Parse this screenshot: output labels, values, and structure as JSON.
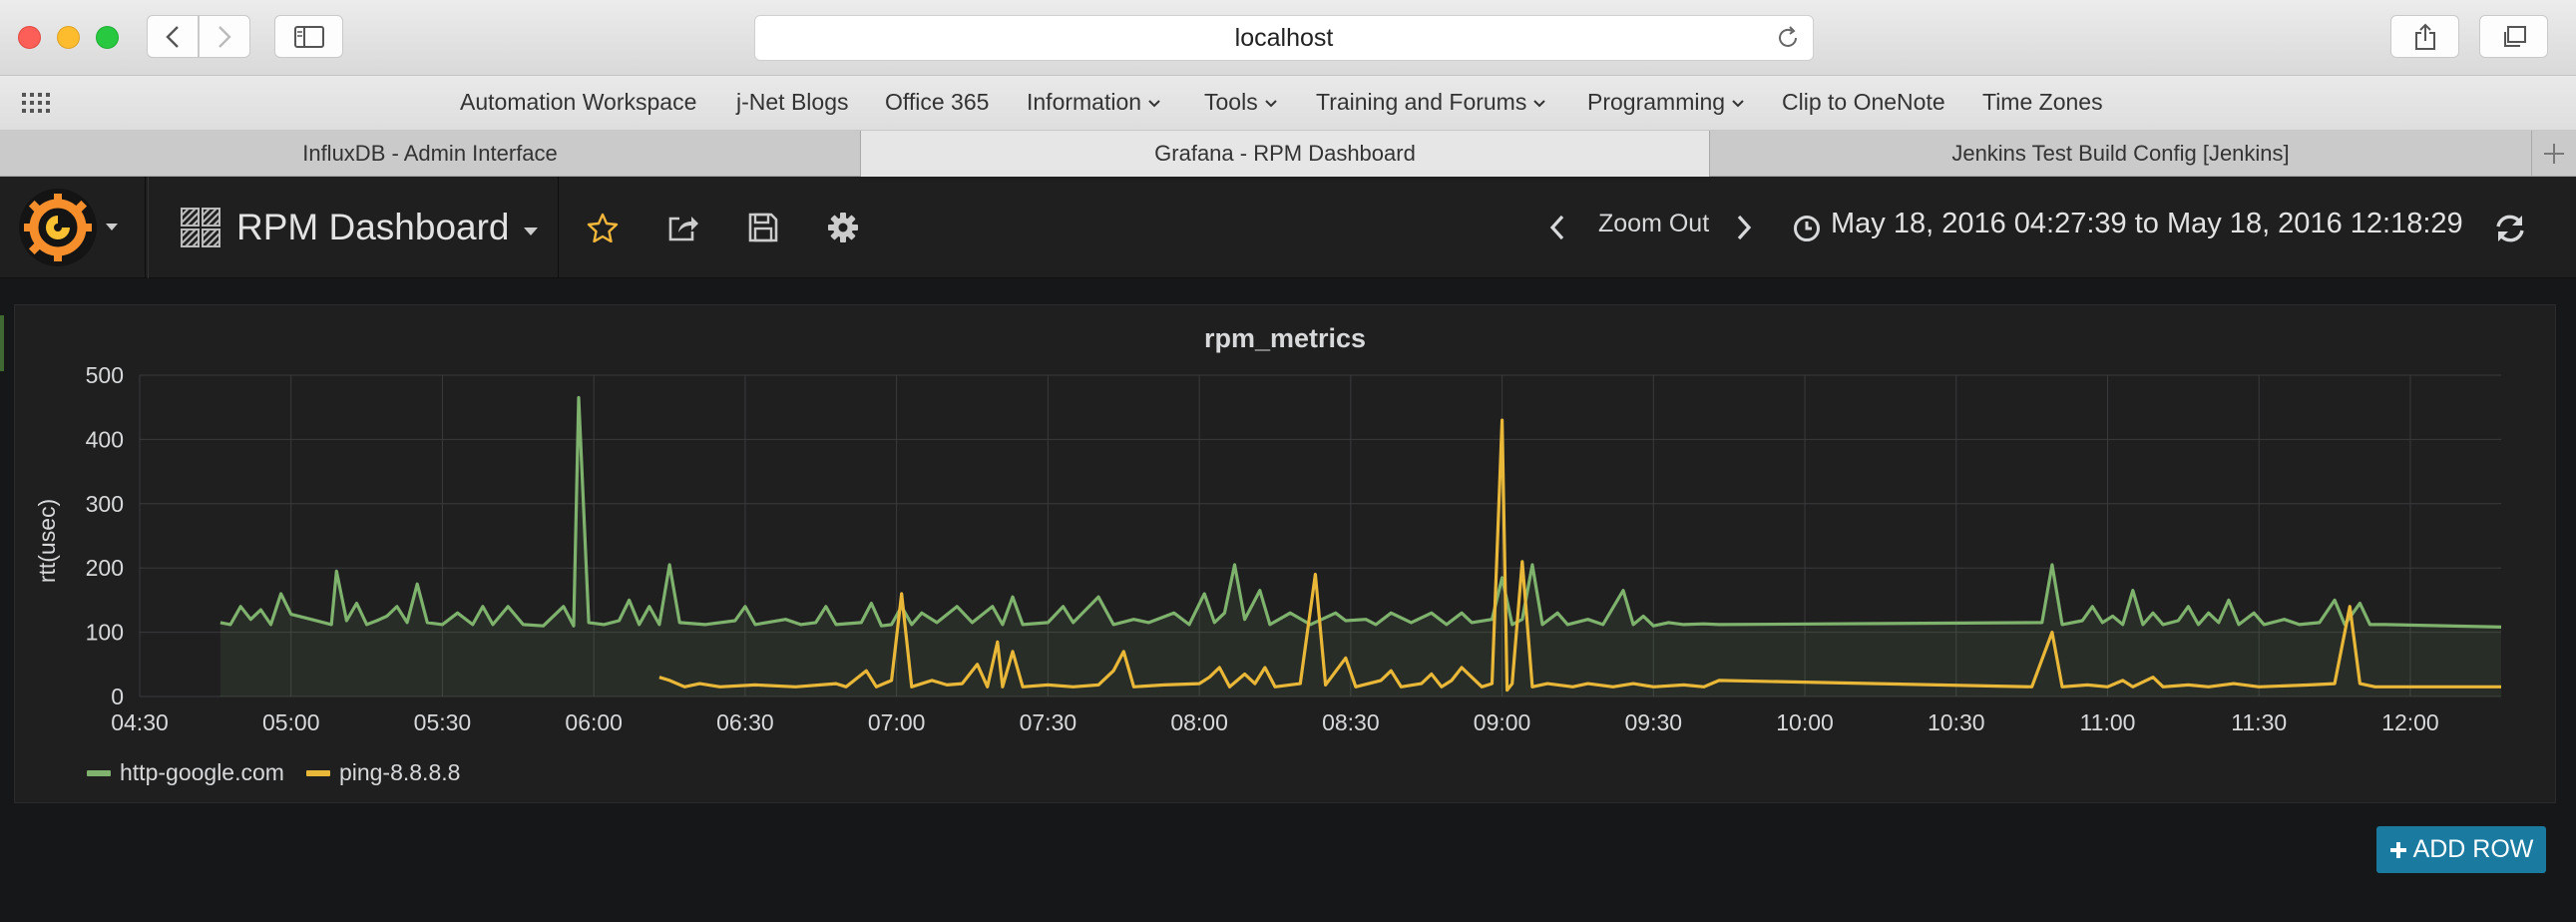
{
  "browser": {
    "url": "localhost",
    "bookmarks": [
      {
        "label": "Automation Workspace",
        "menu": false
      },
      {
        "label": "j-Net Blogs",
        "menu": false
      },
      {
        "label": "Office 365",
        "menu": false
      },
      {
        "label": "Information",
        "menu": true
      },
      {
        "label": "Tools",
        "menu": true
      },
      {
        "label": "Training and Forums",
        "menu": true
      },
      {
        "label": "Programming",
        "menu": true
      },
      {
        "label": "Clip to OneNote",
        "menu": false
      },
      {
        "label": "Time Zones",
        "menu": false
      }
    ],
    "tabs": [
      {
        "label": "InfluxDB - Admin Interface",
        "active": false
      },
      {
        "label": "Grafana - RPM Dashboard",
        "active": true
      },
      {
        "label": "Jenkins Test Build Config [Jenkins]",
        "active": false
      }
    ]
  },
  "dashboard": {
    "title": "RPM Dashboard",
    "zoom_label": "Zoom Out",
    "time_range": "May 18, 2016 04:27:39 to May 18, 2016 12:18:29",
    "add_row_label": "ADD ROW"
  },
  "chart_data": {
    "type": "line",
    "title": "rpm_metrics",
    "ylabel": "rtt(usec)",
    "xlabel": "",
    "x_ticks": [
      "04:30",
      "05:00",
      "05:30",
      "06:00",
      "06:30",
      "07:00",
      "07:30",
      "08:00",
      "08:30",
      "09:00",
      "09:30",
      "10:00",
      "10:30",
      "11:00",
      "11:30",
      "12:00"
    ],
    "y_ticks": [
      0,
      100,
      200,
      300,
      400,
      500
    ],
    "ylim": [
      0,
      500
    ],
    "xlim": [
      "04:30",
      "12:18"
    ],
    "grid": true,
    "legend": "bottom-left",
    "series": [
      {
        "name": "http-google.com",
        "color": "#7eb26d",
        "fill": true,
        "points": [
          [
            "04:46",
            115
          ],
          [
            "04:48",
            112
          ],
          [
            "04:50",
            140
          ],
          [
            "04:52",
            120
          ],
          [
            "04:54",
            135
          ],
          [
            "04:56",
            112
          ],
          [
            "04:58",
            160
          ],
          [
            "05:00",
            128
          ],
          [
            "05:04",
            120
          ],
          [
            "05:08",
            112
          ],
          [
            "05:09",
            195
          ],
          [
            "05:11",
            118
          ],
          [
            "05:13",
            145
          ],
          [
            "05:15",
            112
          ],
          [
            "05:17",
            118
          ],
          [
            "05:19",
            125
          ],
          [
            "05:21",
            140
          ],
          [
            "05:23",
            115
          ],
          [
            "05:25",
            175
          ],
          [
            "05:27",
            115
          ],
          [
            "05:30",
            112
          ],
          [
            "05:33",
            130
          ],
          [
            "05:36",
            112
          ],
          [
            "05:38",
            140
          ],
          [
            "05:40",
            112
          ],
          [
            "05:43",
            140
          ],
          [
            "05:46",
            112
          ],
          [
            "05:50",
            110
          ],
          [
            "05:54",
            140
          ],
          [
            "05:56",
            110
          ],
          [
            "05:57",
            465
          ],
          [
            "05:59",
            115
          ],
          [
            "06:02",
            112
          ],
          [
            "06:05",
            118
          ],
          [
            "06:07",
            150
          ],
          [
            "06:09",
            112
          ],
          [
            "06:11",
            140
          ],
          [
            "06:13",
            112
          ],
          [
            "06:15",
            205
          ],
          [
            "06:17",
            115
          ],
          [
            "06:22",
            112
          ],
          [
            "06:28",
            118
          ],
          [
            "06:30",
            140
          ],
          [
            "06:32",
            112
          ],
          [
            "06:38",
            120
          ],
          [
            "06:41",
            112
          ],
          [
            "06:44",
            115
          ],
          [
            "06:46",
            140
          ],
          [
            "06:48",
            112
          ],
          [
            "06:53",
            115
          ],
          [
            "06:55",
            145
          ],
          [
            "06:57",
            110
          ],
          [
            "06:59",
            112
          ],
          [
            "07:01",
            140
          ],
          [
            "07:03",
            112
          ],
          [
            "07:05",
            130
          ],
          [
            "07:08",
            115
          ],
          [
            "07:12",
            140
          ],
          [
            "07:15",
            115
          ],
          [
            "07:19",
            140
          ],
          [
            "07:21",
            112
          ],
          [
            "07:23",
            155
          ],
          [
            "07:25",
            112
          ],
          [
            "07:30",
            115
          ],
          [
            "07:33",
            140
          ],
          [
            "07:35",
            115
          ],
          [
            "07:40",
            155
          ],
          [
            "07:43",
            112
          ],
          [
            "07:47",
            120
          ],
          [
            "07:50",
            115
          ],
          [
            "07:55",
            130
          ],
          [
            "07:58",
            112
          ],
          [
            "08:01",
            160
          ],
          [
            "08:03",
            115
          ],
          [
            "08:05",
            130
          ],
          [
            "08:07",
            205
          ],
          [
            "08:09",
            120
          ],
          [
            "08:12",
            165
          ],
          [
            "08:14",
            112
          ],
          [
            "08:18",
            130
          ],
          [
            "08:22",
            112
          ],
          [
            "08:27",
            130
          ],
          [
            "08:29",
            118
          ],
          [
            "08:33",
            120
          ],
          [
            "08:35",
            112
          ],
          [
            "08:38",
            130
          ],
          [
            "08:42",
            115
          ],
          [
            "08:46",
            130
          ],
          [
            "08:49",
            112
          ],
          [
            "08:52",
            130
          ],
          [
            "08:54",
            115
          ],
          [
            "08:58",
            120
          ],
          [
            "09:00",
            185
          ],
          [
            "09:02",
            112
          ],
          [
            "09:04",
            120
          ],
          [
            "09:06",
            205
          ],
          [
            "09:08",
            112
          ],
          [
            "09:11",
            130
          ],
          [
            "09:13",
            112
          ],
          [
            "09:17",
            120
          ],
          [
            "09:20",
            112
          ],
          [
            "09:24",
            165
          ],
          [
            "09:26",
            112
          ],
          [
            "09:28",
            125
          ],
          [
            "09:30",
            110
          ],
          [
            "09:33",
            115
          ],
          [
            "09:36",
            112
          ],
          [
            "09:40",
            113
          ],
          [
            "09:43",
            112
          ],
          [
            "10:47",
            115
          ],
          [
            "10:49",
            205
          ],
          [
            "10:51",
            112
          ],
          [
            "10:55",
            118
          ],
          [
            "10:57",
            140
          ],
          [
            "10:59",
            115
          ],
          [
            "11:01",
            125
          ],
          [
            "11:03",
            112
          ],
          [
            "11:05",
            165
          ],
          [
            "11:07",
            112
          ],
          [
            "11:09",
            130
          ],
          [
            "11:11",
            112
          ],
          [
            "11:14",
            118
          ],
          [
            "11:16",
            140
          ],
          [
            "11:18",
            112
          ],
          [
            "11:20",
            130
          ],
          [
            "11:22",
            115
          ],
          [
            "11:24",
            150
          ],
          [
            "11:26",
            112
          ],
          [
            "11:29",
            130
          ],
          [
            "11:31",
            112
          ],
          [
            "11:35",
            120
          ],
          [
            "11:38",
            112
          ],
          [
            "11:42",
            115
          ],
          [
            "11:45",
            150
          ],
          [
            "11:47",
            112
          ],
          [
            "11:50",
            145
          ],
          [
            "11:52",
            112
          ],
          [
            "11:55",
            112
          ],
          [
            "12:18",
            108
          ]
        ]
      },
      {
        "name": "ping-8.8.8.8",
        "color": "#eab839",
        "fill": false,
        "points": [
          [
            "06:13",
            30
          ],
          [
            "06:15",
            25
          ],
          [
            "06:18",
            15
          ],
          [
            "06:21",
            20
          ],
          [
            "06:25",
            15
          ],
          [
            "06:32",
            18
          ],
          [
            "06:40",
            15
          ],
          [
            "06:48",
            20
          ],
          [
            "06:50",
            15
          ],
          [
            "06:54",
            40
          ],
          [
            "06:56",
            15
          ],
          [
            "06:59",
            25
          ],
          [
            "07:01",
            160
          ],
          [
            "07:03",
            15
          ],
          [
            "07:07",
            25
          ],
          [
            "07:10",
            18
          ],
          [
            "07:13",
            20
          ],
          [
            "07:16",
            50
          ],
          [
            "07:18",
            15
          ],
          [
            "07:20",
            85
          ],
          [
            "07:21",
            15
          ],
          [
            "07:23",
            70
          ],
          [
            "07:25",
            15
          ],
          [
            "07:30",
            18
          ],
          [
            "07:35",
            15
          ],
          [
            "07:40",
            18
          ],
          [
            "07:43",
            40
          ],
          [
            "07:45",
            70
          ],
          [
            "07:47",
            15
          ],
          [
            "07:53",
            18
          ],
          [
            "08:00",
            20
          ],
          [
            "08:02",
            30
          ],
          [
            "08:04",
            45
          ],
          [
            "08:06",
            15
          ],
          [
            "08:09",
            35
          ],
          [
            "08:11",
            20
          ],
          [
            "08:13",
            45
          ],
          [
            "08:15",
            15
          ],
          [
            "08:20",
            20
          ],
          [
            "08:23",
            190
          ],
          [
            "08:25",
            18
          ],
          [
            "08:29",
            60
          ],
          [
            "08:31",
            15
          ],
          [
            "08:36",
            25
          ],
          [
            "08:38",
            40
          ],
          [
            "08:40",
            15
          ],
          [
            "08:44",
            20
          ],
          [
            "08:46",
            35
          ],
          [
            "08:48",
            15
          ],
          [
            "08:50",
            25
          ],
          [
            "08:52",
            45
          ],
          [
            "08:54",
            30
          ],
          [
            "08:56",
            15
          ],
          [
            "08:58",
            20
          ],
          [
            "09:00",
            430
          ],
          [
            "09:01",
            10
          ],
          [
            "09:02",
            20
          ],
          [
            "09:04",
            210
          ],
          [
            "09:06",
            15
          ],
          [
            "09:09",
            20
          ],
          [
            "09:14",
            15
          ],
          [
            "09:17",
            20
          ],
          [
            "09:22",
            15
          ],
          [
            "09:26",
            20
          ],
          [
            "09:30",
            15
          ],
          [
            "09:36",
            18
          ],
          [
            "09:40",
            15
          ],
          [
            "09:43",
            25
          ],
          [
            "10:45",
            15
          ],
          [
            "10:49",
            100
          ],
          [
            "10:51",
            15
          ],
          [
            "10:56",
            18
          ],
          [
            "11:00",
            15
          ],
          [
            "11:03",
            25
          ],
          [
            "11:05",
            15
          ],
          [
            "11:09",
            30
          ],
          [
            "11:11",
            15
          ],
          [
            "11:16",
            18
          ],
          [
            "11:20",
            15
          ],
          [
            "11:25",
            20
          ],
          [
            "11:30",
            15
          ],
          [
            "11:40",
            18
          ],
          [
            "11:45",
            20
          ],
          [
            "11:48",
            140
          ],
          [
            "11:50",
            20
          ],
          [
            "11:53",
            15
          ],
          [
            "12:00",
            15
          ],
          [
            "12:18",
            15
          ]
        ]
      }
    ]
  }
}
